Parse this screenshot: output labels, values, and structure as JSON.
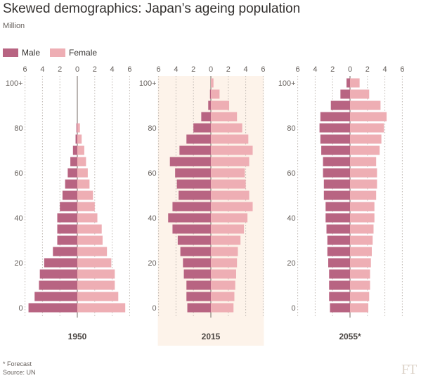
{
  "title": "Skewed demographics: Japan’s ageing population",
  "subtitle": "Million",
  "legend": {
    "male": "Male",
    "female": "Female"
  },
  "footnote": {
    "forecast": "* Forecast",
    "source": "Source: UN"
  },
  "logo": "FT",
  "colors": {
    "male": "#b86482",
    "female": "#eeaeb4",
    "highlight": "#fdf3ea",
    "grid": "#bdb6b0",
    "text": "#66605c"
  },
  "chart_data": {
    "type": "bar",
    "orientation": "horizontal-population-pyramid",
    "unit": "Million",
    "x_ticks": [
      "6",
      "4",
      "2",
      "0",
      "2",
      "4",
      "6"
    ],
    "x_range": [
      -6,
      6
    ],
    "y_ticks": [
      {
        "label": "100+",
        "group": 20
      },
      {
        "label": "80",
        "group": 16
      },
      {
        "label": "60",
        "group": 12
      },
      {
        "label": "40",
        "group": 8
      },
      {
        "label": "20",
        "group": 4
      },
      {
        "label": "0",
        "group": 0
      }
    ],
    "age_groups": [
      "0-4",
      "5-9",
      "10-14",
      "15-19",
      "20-24",
      "25-29",
      "30-34",
      "35-39",
      "40-44",
      "45-49",
      "50-54",
      "55-59",
      "60-64",
      "65-69",
      "70-74",
      "75-79",
      "80-84",
      "85-89",
      "90-94",
      "95-99",
      "100+"
    ],
    "highlighted_panel": "2015",
    "panels": [
      {
        "label": "1950",
        "male": [
          5.6,
          4.9,
          4.4,
          4.3,
          3.8,
          2.8,
          2.3,
          2.3,
          2.3,
          2.0,
          1.7,
          1.4,
          1.1,
          0.8,
          0.5,
          0.2,
          0.1,
          0,
          0,
          0,
          0
        ],
        "female": [
          5.5,
          4.7,
          4.3,
          4.3,
          3.9,
          3.4,
          2.9,
          2.8,
          2.3,
          2.0,
          1.8,
          1.4,
          1.2,
          1.0,
          0.8,
          0.5,
          0.3,
          0,
          0,
          0,
          0
        ]
      },
      {
        "label": "2015",
        "male": [
          2.7,
          2.8,
          2.8,
          3.1,
          3.2,
          3.5,
          3.8,
          4.4,
          4.9,
          4.4,
          3.7,
          3.9,
          4.1,
          4.7,
          3.6,
          2.8,
          2.0,
          1.1,
          0.3,
          0.1,
          0
        ],
        "female": [
          2.6,
          2.7,
          2.8,
          2.9,
          3.0,
          3.1,
          3.4,
          3.8,
          4.2,
          4.8,
          4.4,
          4.0,
          3.9,
          4.4,
          4.8,
          4.3,
          3.6,
          3.0,
          2.1,
          1.0,
          0.3
        ]
      },
      {
        "label": "2055*",
        "male": [
          2.3,
          2.4,
          2.4,
          2.4,
          2.5,
          2.6,
          2.6,
          2.7,
          2.8,
          2.8,
          3.0,
          3.0,
          3.1,
          3.1,
          3.3,
          3.4,
          3.5,
          3.4,
          2.2,
          1.1,
          0.4
        ],
        "female": [
          2.1,
          2.2,
          2.3,
          2.3,
          2.4,
          2.5,
          2.6,
          2.7,
          2.8,
          2.8,
          3.0,
          3.1,
          3.1,
          3.0,
          3.4,
          3.6,
          3.9,
          4.2,
          3.5,
          2.2,
          1.1
        ]
      }
    ]
  }
}
